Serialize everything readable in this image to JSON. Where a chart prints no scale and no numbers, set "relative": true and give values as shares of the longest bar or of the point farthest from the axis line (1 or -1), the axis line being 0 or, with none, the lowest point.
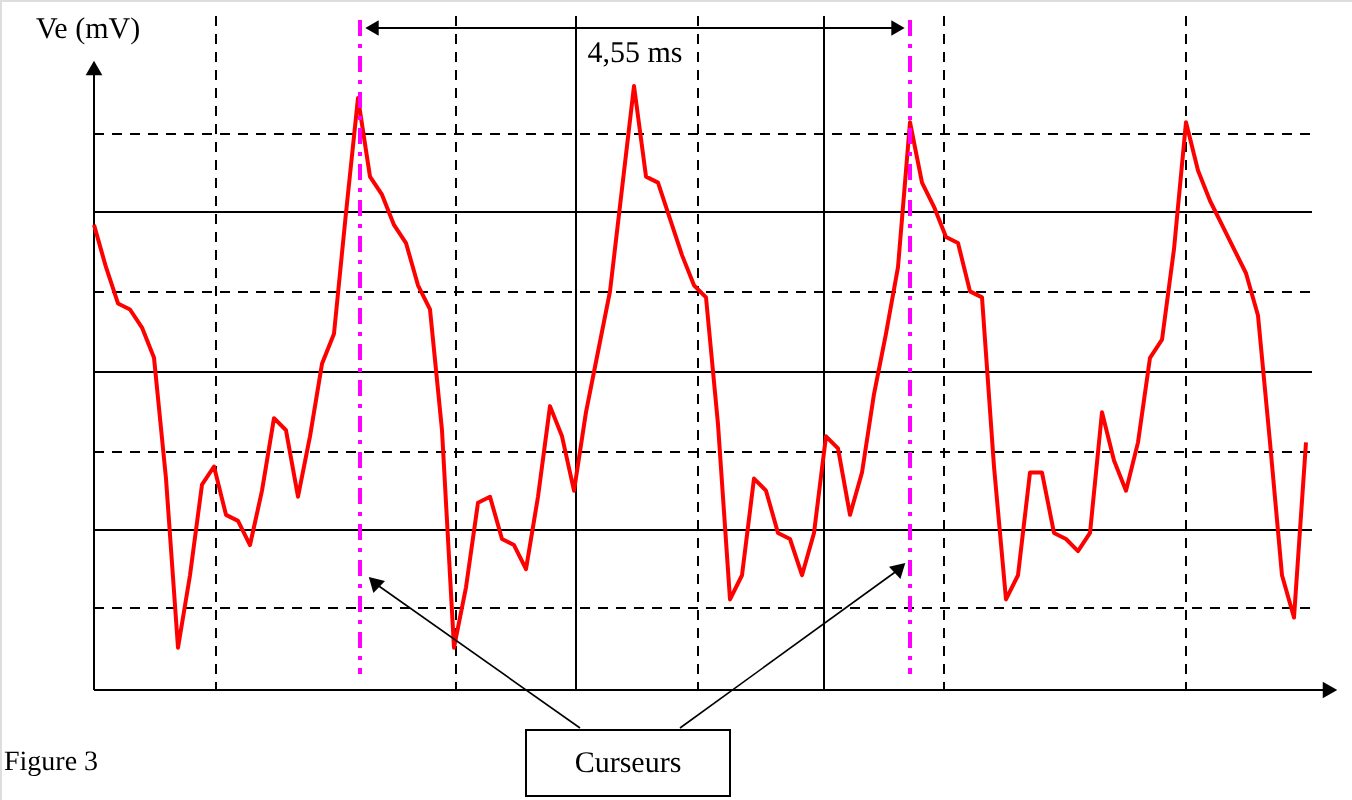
{
  "chart_data": {
    "type": "line",
    "ylabel": "Ve (mV)",
    "relative": true,
    "grid": true,
    "marker": "none",
    "line_style": "solid",
    "tick_labels": false,
    "categories": [
      null,
      null,
      null,
      null,
      null,
      null,
      null,
      null,
      null,
      null,
      null,
      null,
      null,
      null,
      null,
      null,
      null,
      null,
      null,
      null,
      null,
      null,
      null,
      null,
      null,
      null,
      null,
      null,
      null,
      null,
      null,
      null,
      null,
      null,
      null,
      null,
      null,
      null,
      null,
      null,
      null,
      null,
      null,
      null,
      null,
      null,
      null,
      null,
      null,
      null,
      null,
      null,
      null,
      null,
      null,
      null,
      null,
      null,
      null,
      null,
      null,
      null,
      null,
      null,
      null,
      null,
      null,
      null,
      null,
      null,
      null,
      null,
      null,
      null,
      null,
      null,
      null,
      null,
      null,
      null,
      null,
      null,
      null,
      null,
      null,
      null,
      null,
      null,
      null,
      null,
      null,
      null,
      null,
      null,
      null,
      null,
      null,
      null,
      null,
      null,
      null,
      null
    ],
    "series": [
      {
        "color": "#ff0000",
        "values": [
          0.77,
          0.7,
          0.64,
          0.63,
          0.6,
          0.55,
          0.35,
          0.07,
          0.19,
          0.34,
          0.37,
          0.29,
          0.28,
          0.24,
          0.33,
          0.45,
          0.43,
          0.32,
          0.42,
          0.54,
          0.59,
          0.79,
          0.98,
          0.85,
          0.82,
          0.77,
          0.74,
          0.67,
          0.63,
          0.43,
          0.07,
          0.17,
          0.31,
          0.32,
          0.25,
          0.24,
          0.2,
          0.32,
          0.47,
          0.42,
          0.33,
          0.46,
          0.56,
          0.66,
          0.83,
          1.0,
          0.85,
          0.84,
          0.78,
          0.72,
          0.67,
          0.65,
          0.44,
          0.15,
          0.19,
          0.35,
          0.33,
          0.26,
          0.25,
          0.19,
          0.26,
          0.42,
          0.4,
          0.29,
          0.36,
          0.49,
          0.59,
          0.7,
          0.94,
          0.84,
          0.8,
          0.75,
          0.74,
          0.66,
          0.65,
          0.37,
          0.15,
          0.19,
          0.36,
          0.36,
          0.26,
          0.25,
          0.23,
          0.26,
          0.46,
          0.38,
          0.33,
          0.41,
          0.55,
          0.58,
          0.73,
          0.94,
          0.86,
          0.81,
          0.77,
          0.73,
          0.69,
          0.62,
          0.41,
          0.19,
          0.12,
          0.41
        ]
      }
    ],
    "annotations": [
      "4,55 ms",
      "Curseurs",
      "Figure 3"
    ]
  }
}
